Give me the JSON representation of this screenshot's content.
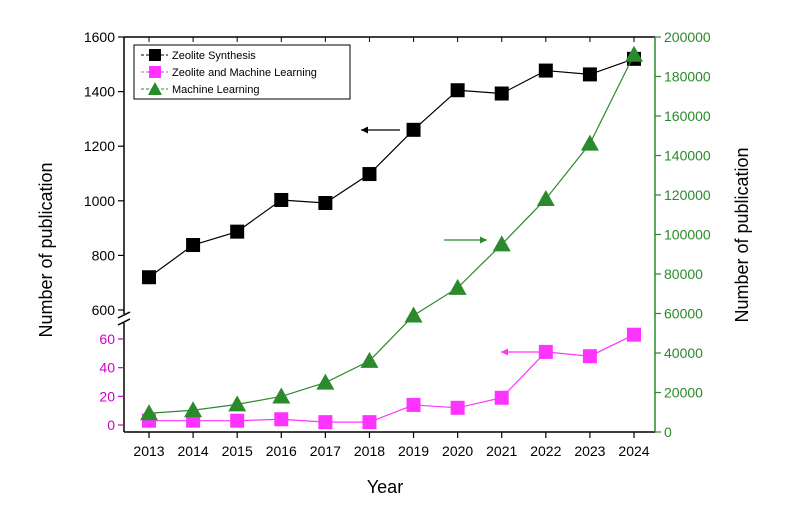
{
  "colors": {
    "zeolite_synthesis": "#000000",
    "zeolite_ml": "#ff33ff",
    "ml": "#2b8a2b",
    "left_axis": "#000000",
    "left_lower_axis": "#cc00cc",
    "right_axis": "#2b8a2b"
  },
  "chart_data": {
    "type": "line",
    "x": [
      2013,
      2014,
      2015,
      2016,
      2017,
      2018,
      2019,
      2020,
      2021,
      2022,
      2023,
      2024
    ],
    "xlabel": "Year",
    "ylabel_left": "Number of publication",
    "ylabel_right": "Number of publication",
    "left_axis_upper": {
      "range": [
        600,
        1600
      ],
      "ticks": [
        "600",
        "800",
        "1000",
        "1200",
        "1400",
        "1600"
      ]
    },
    "left_axis_lower": {
      "range": [
        0,
        70
      ],
      "ticks": [
        "0",
        "20",
        "40",
        "60"
      ]
    },
    "right_axis": {
      "range": [
        0,
        200000
      ],
      "ticks": [
        "0",
        "20000",
        "40000",
        "60000",
        "80000",
        "100000",
        "120000",
        "140000",
        "160000",
        "180000",
        "200000"
      ]
    },
    "axis_break": "left axis broken between 70 and 600",
    "series": [
      {
        "name": "Zeolite Synthesis",
        "axis": "left_upper",
        "marker": "square",
        "color": "#000000",
        "values": [
          720,
          838,
          887,
          1003,
          992,
          1098,
          1260,
          1405,
          1393,
          1477,
          1463,
          1520
        ]
      },
      {
        "name": "Zeolite and Machine Learning",
        "axis": "left_lower",
        "marker": "square",
        "color": "#ff33ff",
        "values": [
          3,
          3,
          3,
          4,
          2,
          2,
          14,
          12,
          19,
          51,
          48,
          63
        ]
      },
      {
        "name": "Machine Learning",
        "axis": "right",
        "marker": "triangle",
        "color": "#2b8a2b",
        "values": [
          9500,
          11000,
          14000,
          18000,
          25000,
          36000,
          59000,
          73000,
          95000,
          118000,
          146000,
          191000
        ]
      }
    ],
    "legend_position": "top-left",
    "grid": false,
    "annotations": "arrows pointing to the axis for each series"
  }
}
